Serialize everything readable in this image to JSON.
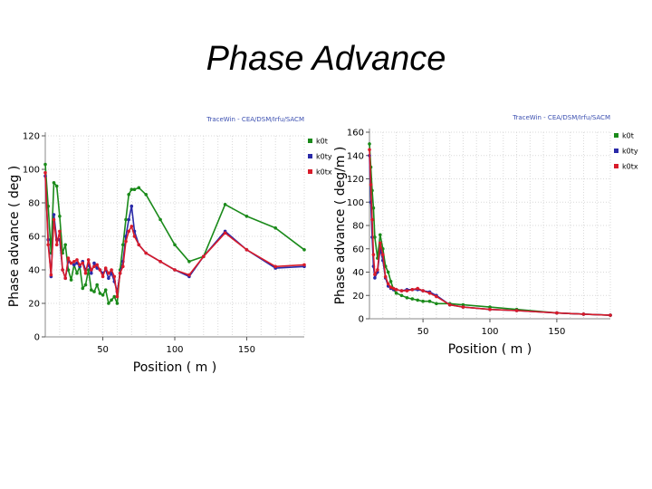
{
  "title": "Phase Advance",
  "chart_data": [
    {
      "type": "line",
      "header": "TraceWin - CEA/DSM/Irfu/SACM",
      "xlabel": "Position ( m )",
      "ylabel": "Phase advance ( deg )",
      "xlim": [
        10,
        190
      ],
      "ylim": [
        0,
        120
      ],
      "xticks": [
        50,
        100,
        150
      ],
      "yticks": [
        0,
        20,
        40,
        60,
        80,
        100,
        120
      ],
      "grid": true,
      "legend_position": "top-right",
      "series": [
        {
          "name": "k0t",
          "color": "#1a8a1a",
          "x": [
            10,
            12,
            14,
            16,
            18,
            20,
            22,
            24,
            26,
            28,
            30,
            32,
            34,
            36,
            38,
            40,
            42,
            44,
            46,
            48,
            50,
            52,
            54,
            56,
            58,
            60,
            62,
            64,
            66,
            68,
            70,
            72,
            75,
            80,
            90,
            100,
            110,
            120,
            135,
            150,
            170,
            190
          ],
          "y": [
            103,
            78,
            50,
            92,
            90,
            72,
            50,
            55,
            40,
            34,
            43,
            38,
            42,
            29,
            31,
            40,
            28,
            27,
            31,
            26,
            25,
            28,
            20,
            22,
            24,
            20,
            40,
            55,
            70,
            85,
            88,
            88,
            89,
            85,
            70,
            55,
            45,
            48,
            79,
            72,
            65,
            52
          ]
        },
        {
          "name": "k0ty",
          "color": "#2a2aa8",
          "x": [
            10,
            12,
            14,
            16,
            18,
            20,
            22,
            24,
            26,
            28,
            30,
            32,
            34,
            36,
            38,
            40,
            42,
            44,
            46,
            48,
            50,
            52,
            54,
            56,
            58,
            60,
            62,
            64,
            66,
            68,
            70,
            72,
            75,
            80,
            90,
            100,
            110,
            120,
            135,
            150,
            170,
            190
          ],
          "y": [
            96,
            58,
            36,
            73,
            58,
            58,
            40,
            35,
            45,
            44,
            43,
            44,
            42,
            45,
            40,
            43,
            38,
            44,
            41,
            40,
            38,
            40,
            35,
            38,
            33,
            27,
            38,
            45,
            60,
            70,
            78,
            63,
            55,
            50,
            45,
            40,
            36,
            48,
            63,
            52,
            41,
            42
          ]
        },
        {
          "name": "k0tx",
          "color": "#d81b2a",
          "x": [
            10,
            12,
            14,
            16,
            18,
            20,
            22,
            24,
            26,
            28,
            30,
            32,
            34,
            36,
            38,
            40,
            42,
            44,
            46,
            48,
            50,
            52,
            54,
            56,
            58,
            60,
            62,
            64,
            66,
            68,
            70,
            72,
            75,
            80,
            90,
            100,
            110,
            120,
            135,
            150,
            170,
            190
          ],
          "y": [
            98,
            55,
            37,
            70,
            55,
            63,
            40,
            35,
            47,
            44,
            45,
            46,
            43,
            44,
            38,
            46,
            40,
            42,
            43,
            40,
            36,
            41,
            38,
            40,
            36,
            24,
            38,
            42,
            57,
            63,
            66,
            60,
            55,
            50,
            45,
            40,
            37,
            48,
            62,
            52,
            42,
            43
          ]
        }
      ]
    },
    {
      "type": "line",
      "header": "TraceWin - CEA/DSM/Irfu/SACM",
      "xlabel": "Position ( m )",
      "ylabel": "Phase advance ( deg/m )",
      "xlim": [
        10,
        190
      ],
      "ylim": [
        0,
        160
      ],
      "xticks": [
        50,
        100,
        150
      ],
      "yticks": [
        0,
        20,
        40,
        60,
        80,
        100,
        120,
        140,
        160
      ],
      "grid": true,
      "legend_position": "top-right",
      "series": [
        {
          "name": "k0t",
          "color": "#1a8a1a",
          "x": [
            10,
            11,
            12,
            13,
            14,
            16,
            18,
            20,
            22,
            24,
            26,
            28,
            30,
            34,
            38,
            42,
            46,
            50,
            55,
            60,
            70,
            80,
            100,
            120,
            150,
            170,
            190
          ],
          "y": [
            150,
            130,
            110,
            95,
            70,
            52,
            72,
            60,
            45,
            40,
            32,
            25,
            22,
            20,
            18,
            17,
            16,
            15,
            15,
            13,
            13,
            12,
            10,
            8,
            5,
            4,
            3
          ]
        },
        {
          "name": "k0ty",
          "color": "#2a2aa8",
          "x": [
            10,
            11,
            12,
            13,
            14,
            16,
            18,
            20,
            22,
            24,
            26,
            28,
            30,
            34,
            38,
            42,
            46,
            50,
            55,
            60,
            70,
            80,
            100,
            120,
            150,
            170,
            190
          ],
          "y": [
            140,
            100,
            70,
            45,
            35,
            40,
            60,
            50,
            35,
            28,
            26,
            25,
            25,
            24,
            25,
            25,
            25,
            24,
            23,
            20,
            12,
            10,
            8,
            7,
            5,
            4,
            3
          ]
        },
        {
          "name": "k0tx",
          "color": "#d81b2a",
          "x": [
            10,
            11,
            12,
            13,
            14,
            16,
            18,
            20,
            22,
            24,
            26,
            28,
            30,
            34,
            38,
            42,
            46,
            50,
            55,
            60,
            70,
            80,
            100,
            120,
            150,
            170,
            190
          ],
          "y": [
            145,
            115,
            85,
            55,
            38,
            42,
            65,
            55,
            36,
            30,
            27,
            26,
            25,
            24,
            24,
            25,
            26,
            24,
            22,
            19,
            12,
            10,
            8,
            7,
            5,
            4,
            3
          ]
        }
      ]
    }
  ]
}
